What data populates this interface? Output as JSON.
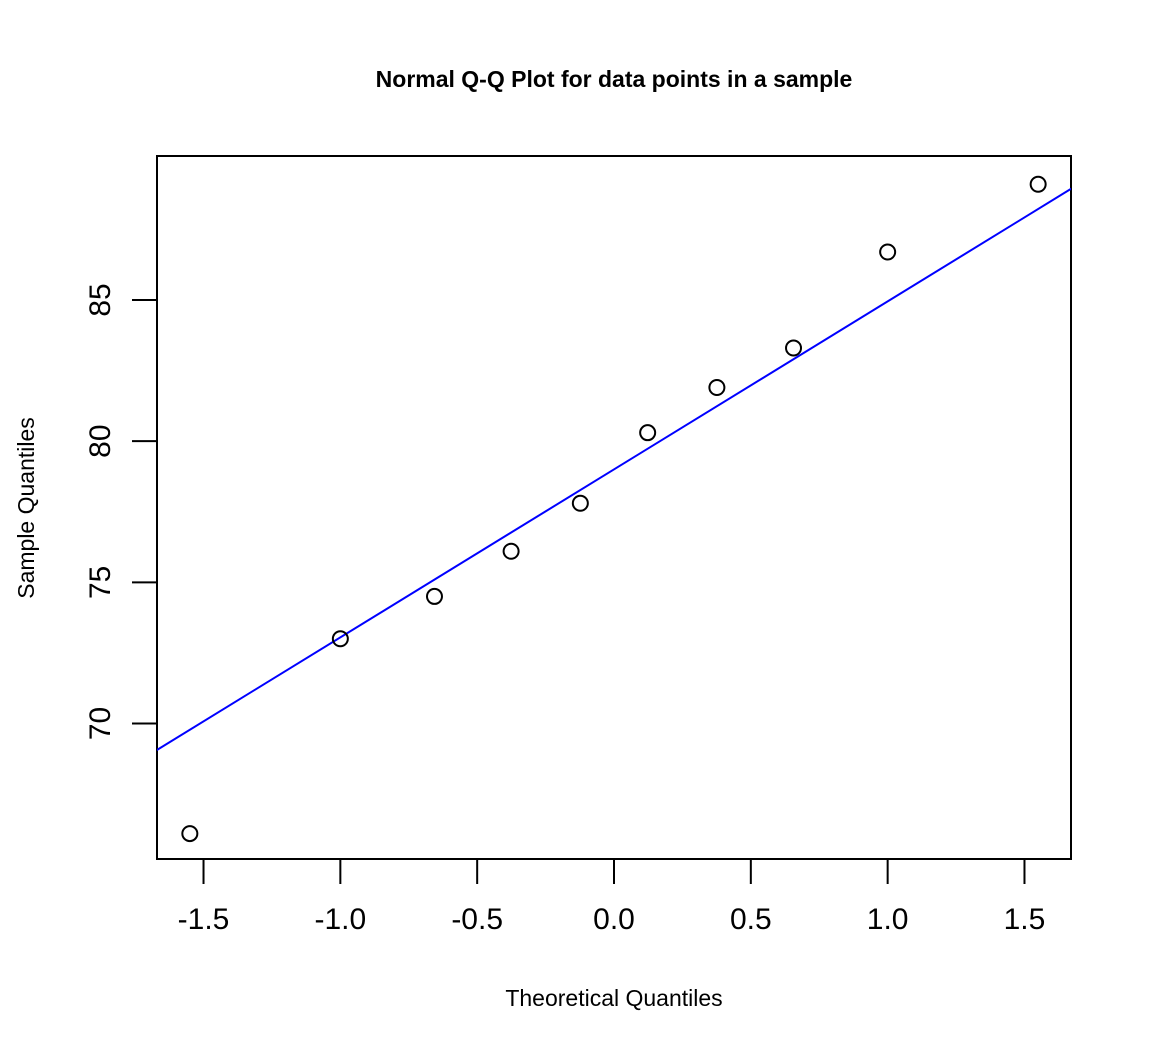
{
  "chart_data": {
    "type": "scatter",
    "title": "Normal Q-Q Plot for data points in a sample",
    "xlabel": "Theoretical Quantiles",
    "ylabel": "Sample Quantiles",
    "xlim": [
      -1.67,
      1.67
    ],
    "ylim": [
      65.2,
      90.1
    ],
    "x_ticks": [
      -1.5,
      -1.0,
      -0.5,
      0.0,
      0.5,
      1.0,
      1.5
    ],
    "x_tick_labels": [
      "-1.5",
      "-1.0",
      "-0.5",
      "0.0",
      "0.5",
      "1.0",
      "1.5"
    ],
    "y_ticks": [
      70,
      75,
      80,
      85
    ],
    "y_tick_labels": [
      "70",
      "75",
      "80",
      "85"
    ],
    "points": [
      {
        "x": -1.55,
        "y": 66.1
      },
      {
        "x": -1.0,
        "y": 73.0
      },
      {
        "x": -0.656,
        "y": 74.5
      },
      {
        "x": -0.376,
        "y": 76.1
      },
      {
        "x": -0.123,
        "y": 77.8
      },
      {
        "x": 0.123,
        "y": 80.3
      },
      {
        "x": 0.376,
        "y": 81.9
      },
      {
        "x": 0.656,
        "y": 83.3
      },
      {
        "x": 1.0,
        "y": 86.7
      },
      {
        "x": 1.55,
        "y": 89.1
      }
    ],
    "reference_line": {
      "intercept": 79.0,
      "slope": 5.95
    },
    "grid": false,
    "colors": {
      "points": "#000000",
      "reference_line": "#0000ff",
      "axes": "#000000"
    }
  }
}
